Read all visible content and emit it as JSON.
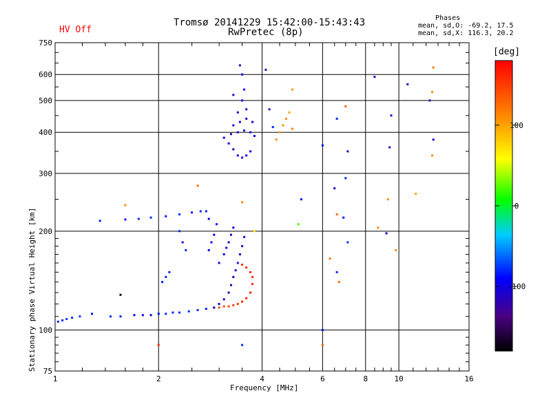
{
  "chart_data": {
    "type": "scatter",
    "title": "Tromsø 20141229 15:42:00-15:43:43",
    "subtitle": "RwPretec (8p)",
    "status": "HV Off",
    "phases": {
      "title": "Phases",
      "line_o": "mean, sd,O: -69.2, 17.5",
      "line_x": "mean, sd,X: 116.3, 20.2"
    },
    "xlabel": "Frequency [MHz]",
    "ylabel": "Stationary phase Virtual Height [km]",
    "x_scale": "log",
    "y_scale": "log",
    "xlim": [
      1,
      16
    ],
    "ylim": [
      75,
      750
    ],
    "x_ticks": [
      1,
      2,
      4,
      6,
      8,
      10,
      16
    ],
    "x_tick_labels": [
      "1",
      "2",
      "4",
      "6",
      "8",
      "10",
      "16"
    ],
    "y_ticks": [
      75,
      100,
      200,
      300,
      400,
      500,
      600,
      750
    ],
    "y_tick_labels": [
      "75",
      "100",
      "200",
      "300",
      "400",
      "500",
      "600",
      "750"
    ],
    "grid": true,
    "colorbar": {
      "label": "[deg]",
      "range": [
        -180,
        180
      ],
      "ticks": [
        100,
        0,
        -100
      ],
      "tick_labels": [
        "100",
        "0",
        "-100"
      ]
    },
    "series": [
      {
        "values": [
          [
            1.02,
            106,
            -80
          ],
          [
            1.05,
            107,
            -80
          ],
          [
            1.08,
            108,
            -75
          ],
          [
            1.12,
            109,
            -80
          ],
          [
            1.18,
            110,
            -75
          ],
          [
            1.28,
            112,
            -85
          ],
          [
            1.45,
            110,
            -80
          ],
          [
            1.55,
            110,
            -85
          ],
          [
            1.7,
            111,
            -90
          ],
          [
            1.8,
            111,
            -95
          ],
          [
            1.9,
            111,
            -100
          ],
          [
            2.0,
            112,
            -90
          ],
          [
            2.1,
            112,
            -80
          ],
          [
            2.2,
            113,
            -80
          ],
          [
            2.3,
            113,
            -80
          ],
          [
            2.45,
            114,
            -80
          ],
          [
            2.6,
            115,
            -80
          ],
          [
            2.75,
            116,
            -85
          ],
          [
            2.9,
            117,
            140
          ],
          [
            3.0,
            117,
            140
          ],
          [
            3.1,
            118,
            140
          ],
          [
            3.2,
            118,
            145
          ],
          [
            3.3,
            119,
            150
          ],
          [
            3.4,
            120,
            155
          ],
          [
            3.5,
            122,
            160
          ],
          [
            3.6,
            125,
            165
          ],
          [
            3.7,
            130,
            165
          ],
          [
            3.75,
            138,
            165
          ],
          [
            3.75,
            145,
            160
          ],
          [
            3.7,
            150,
            160
          ],
          [
            3.6,
            155,
            160
          ],
          [
            3.5,
            158,
            160
          ],
          [
            2.9,
            117,
            -100
          ],
          [
            3.0,
            120,
            -110
          ],
          [
            3.1,
            124,
            -115
          ],
          [
            3.2,
            130,
            -115
          ],
          [
            3.25,
            137,
            -115
          ],
          [
            3.3,
            145,
            -110
          ],
          [
            3.35,
            152,
            -115
          ],
          [
            3.4,
            160,
            -110
          ],
          [
            3.45,
            170,
            -110
          ],
          [
            3.5,
            180,
            -105
          ],
          [
            3.55,
            192,
            -100
          ],
          [
            3.0,
            160,
            -95
          ],
          [
            3.1,
            170,
            -100
          ],
          [
            3.15,
            178,
            -110
          ],
          [
            3.2,
            185,
            -115
          ],
          [
            3.25,
            195,
            -100
          ],
          [
            3.3,
            205,
            -95
          ],
          [
            2.8,
            175,
            -90
          ],
          [
            2.85,
            185,
            -90
          ],
          [
            2.9,
            195,
            -90
          ],
          [
            2.95,
            210,
            -85
          ],
          [
            2.8,
            218,
            -90
          ],
          [
            2.75,
            230,
            -85
          ],
          [
            2.3,
            200,
            -80
          ],
          [
            2.35,
            185,
            -85
          ],
          [
            2.4,
            175,
            -80
          ],
          [
            2.1,
            145,
            -80
          ],
          [
            2.05,
            140,
            -85
          ],
          [
            2.15,
            150,
            -80
          ],
          [
            1.35,
            215,
            -85
          ],
          [
            1.6,
            217,
            -85
          ],
          [
            1.75,
            218,
            -80
          ],
          [
            1.9,
            220,
            -80
          ],
          [
            2.1,
            222,
            -85
          ],
          [
            2.3,
            225,
            -80
          ],
          [
            2.5,
            228,
            -85
          ],
          [
            2.65,
            230,
            -80
          ],
          [
            3.8,
            200,
            70
          ],
          [
            1.55,
            128,
            -170
          ],
          [
            3.4,
            340,
            -95
          ],
          [
            3.5,
            335,
            -100
          ],
          [
            3.6,
            340,
            -95
          ],
          [
            3.7,
            350,
            -100
          ],
          [
            3.3,
            355,
            -110
          ],
          [
            3.2,
            370,
            -95
          ],
          [
            3.1,
            385,
            -100
          ],
          [
            3.25,
            395,
            -110
          ],
          [
            3.4,
            400,
            -110
          ],
          [
            3.55,
            405,
            -105
          ],
          [
            3.7,
            400,
            -100
          ],
          [
            3.8,
            390,
            -95
          ],
          [
            3.3,
            420,
            -110
          ],
          [
            3.45,
            430,
            -110
          ],
          [
            3.6,
            440,
            -105
          ],
          [
            3.75,
            430,
            -100
          ],
          [
            3.4,
            460,
            -110
          ],
          [
            3.6,
            470,
            -110
          ],
          [
            3.5,
            500,
            -100
          ],
          [
            3.55,
            540,
            -95
          ],
          [
            3.5,
            600,
            -90
          ],
          [
            3.45,
            640,
            -110
          ],
          [
            3.3,
            520,
            -110
          ],
          [
            4.1,
            620,
            -120
          ],
          [
            4.5,
            400,
            100
          ],
          [
            4.6,
            420,
            110
          ],
          [
            4.7,
            440,
            110
          ],
          [
            4.8,
            460,
            100
          ],
          [
            4.9,
            540,
            105
          ],
          [
            4.9,
            410,
            115
          ],
          [
            4.4,
            380,
            110
          ],
          [
            4.2,
            470,
            -120
          ],
          [
            4.3,
            415,
            -80
          ],
          [
            6.0,
            365,
            -90
          ],
          [
            6.6,
            440,
            -80
          ],
          [
            7.0,
            480,
            130
          ],
          [
            7.1,
            350,
            -110
          ],
          [
            6.5,
            270,
            -110
          ],
          [
            7.0,
            290,
            -80
          ],
          [
            6.6,
            225,
            130
          ],
          [
            6.9,
            220,
            -90
          ],
          [
            5.2,
            250,
            -90
          ],
          [
            5.1,
            210,
            20
          ],
          [
            7.1,
            185,
            -80
          ],
          [
            6.3,
            165,
            120
          ],
          [
            6.6,
            150,
            -80
          ],
          [
            6.7,
            140,
            130
          ],
          [
            6.0,
            100,
            -90
          ],
          [
            6.0,
            90,
            130
          ],
          [
            8.5,
            590,
            -110
          ],
          [
            9.5,
            450,
            -100
          ],
          [
            9.4,
            360,
            -110
          ],
          [
            9.3,
            250,
            110
          ],
          [
            9.2,
            197,
            -110
          ],
          [
            8.7,
            205,
            110
          ],
          [
            9.8,
            175,
            110
          ],
          [
            10.6,
            560,
            -120
          ],
          [
            11.2,
            260,
            100
          ],
          [
            12.3,
            500,
            -120
          ],
          [
            12.6,
            380,
            -90
          ],
          [
            12.5,
            340,
            110
          ],
          [
            12.6,
            630,
            120
          ],
          [
            12.5,
            530,
            110
          ],
          [
            3.5,
            90,
            -80
          ],
          [
            2.0,
            90,
            160
          ],
          [
            2.6,
            275,
            130
          ],
          [
            1.6,
            240,
            110
          ],
          [
            3.5,
            245,
            110
          ]
        ]
      }
    ]
  }
}
